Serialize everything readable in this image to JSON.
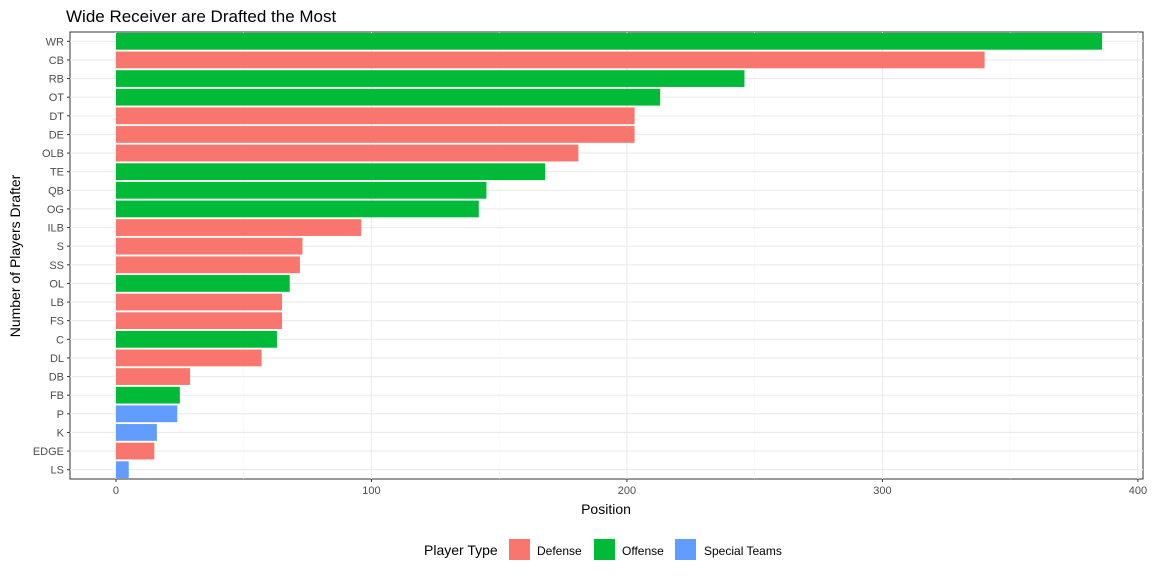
{
  "chart_data": {
    "type": "bar",
    "orientation": "horizontal",
    "title": "Wide Receiver are Drafted the Most",
    "xlabel": "Position",
    "ylabel": "Number of Players Drafter",
    "xlim": [
      -18,
      402
    ],
    "x_ticks": [
      0,
      100,
      200,
      300,
      400
    ],
    "grid": true,
    "legend_position": "bottom",
    "legend_title": "Player Type",
    "legend": [
      {
        "name": "Defense",
        "color": "#F8766D"
      },
      {
        "name": "Offense",
        "color": "#00BA38"
      },
      {
        "name": "Special Teams",
        "color": "#619CFF"
      }
    ],
    "categories": [
      "WR",
      "CB",
      "RB",
      "OT",
      "DT",
      "DE",
      "OLB",
      "TE",
      "QB",
      "OG",
      "ILB",
      "S",
      "SS",
      "OL",
      "LB",
      "FS",
      "C",
      "DL",
      "DB",
      "FB",
      "P",
      "K",
      "EDGE",
      "LS"
    ],
    "values": [
      386,
      340,
      246,
      213,
      203,
      203,
      181,
      168,
      145,
      142,
      96,
      73,
      72,
      68,
      65,
      65,
      63,
      57,
      29,
      25,
      24,
      16,
      15,
      5
    ],
    "groups": [
      "Offense",
      "Defense",
      "Offense",
      "Offense",
      "Defense",
      "Defense",
      "Defense",
      "Offense",
      "Offense",
      "Offense",
      "Defense",
      "Defense",
      "Defense",
      "Offense",
      "Defense",
      "Defense",
      "Offense",
      "Defense",
      "Defense",
      "Offense",
      "Special Teams",
      "Special Teams",
      "Defense",
      "Special Teams"
    ]
  }
}
